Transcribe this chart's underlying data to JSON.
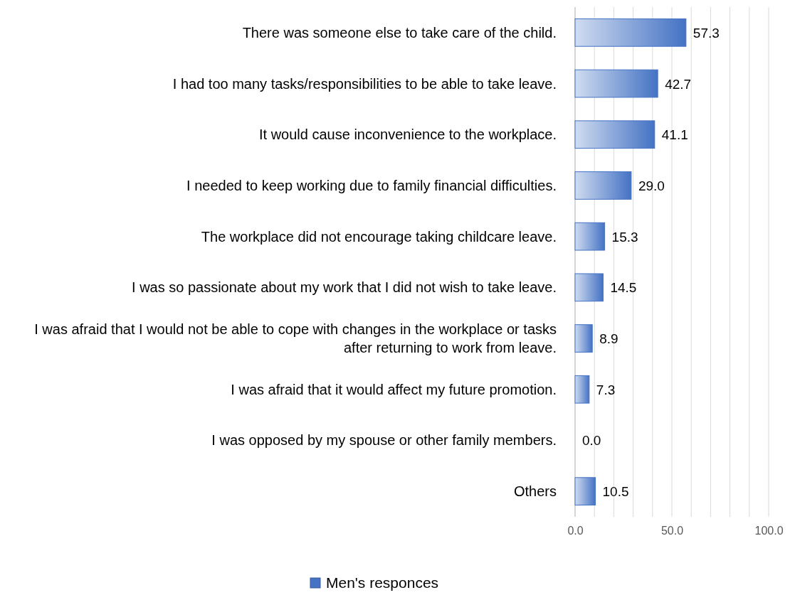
{
  "chart_data": {
    "type": "bar",
    "orientation": "horizontal",
    "categories": [
      "There was someone else to take care of the child.",
      "I had too many tasks/responsibilities to be able to take leave.",
      "It would cause inconvenience to the workplace.",
      "I needed to keep working due to family financial difficulties.",
      "The workplace did not encourage taking childcare leave.",
      "I was so passionate about my work that I did not wish to take leave.",
      "I was afraid that I would not be able to cope with changes in the workplace or tasks after returning to work from leave.",
      "I was afraid that it would affect my future promotion.",
      "I was opposed by my spouse or other family members.",
      "Others"
    ],
    "series": [
      {
        "name": "Men's responces",
        "color": "#4472c4",
        "values": [
          57.3,
          42.7,
          41.1,
          29.0,
          15.3,
          14.5,
          8.9,
          7.3,
          0.0,
          10.5
        ],
        "value_labels": [
          "57.3",
          "42.7",
          "41.1",
          "29.0",
          "15.3",
          "14.5",
          "8.9",
          "7.3",
          "0.0",
          "10.5"
        ]
      }
    ],
    "xlim": [
      0,
      100
    ],
    "xticks": [
      {
        "value": 0,
        "label": "0.0"
      },
      {
        "value": 10,
        "label": null
      },
      {
        "value": 20,
        "label": null
      },
      {
        "value": 30,
        "label": null
      },
      {
        "value": 40,
        "label": null
      },
      {
        "value": 50,
        "label": "50.0"
      },
      {
        "value": 60,
        "label": null
      },
      {
        "value": 70,
        "label": null
      },
      {
        "value": 80,
        "label": null
      },
      {
        "value": 90,
        "label": null
      },
      {
        "value": 100,
        "label": "100.0"
      }
    ],
    "grid": "x",
    "legend": "bottom"
  }
}
